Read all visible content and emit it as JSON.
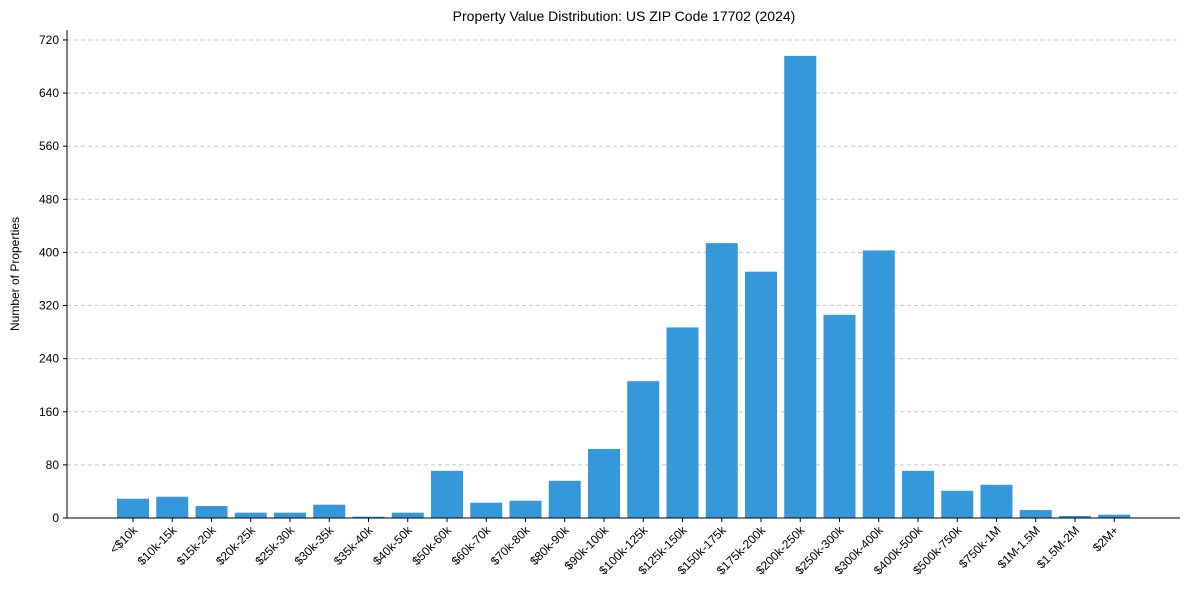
{
  "chart_data": {
    "type": "bar",
    "title": "Property Value Distribution: US ZIP Code 17702 (2024)",
    "xlabel": "",
    "ylabel": "Number of Properties",
    "ylim": [
      0,
      735
    ],
    "yticks": [
      0,
      80,
      160,
      240,
      320,
      400,
      480,
      560,
      640,
      720
    ],
    "grid": "y-dashed",
    "bar_color": "#3498db",
    "categories": [
      "<$10k",
      "$10k-15k",
      "$15k-20k",
      "$20k-25k",
      "$25k-30k",
      "$30k-35k",
      "$35k-40k",
      "$40k-50k",
      "$50k-60k",
      "$60k-70k",
      "$70k-80k",
      "$80k-90k",
      "$90k-100k",
      "$100k-125k",
      "$125k-150k",
      "$150k-175k",
      "$175k-200k",
      "$200k-250k",
      "$250k-300k",
      "$300k-400k",
      "$400k-500k",
      "$500k-750k",
      "$750k-1M",
      "$1M-1.5M",
      "$1.5M-2M",
      "$2M+"
    ],
    "values": [
      29,
      32,
      18,
      8,
      8,
      20,
      2,
      8,
      71,
      23,
      26,
      56,
      104,
      206,
      287,
      414,
      371,
      696,
      306,
      403,
      71,
      41,
      50,
      12,
      3,
      5
    ]
  }
}
